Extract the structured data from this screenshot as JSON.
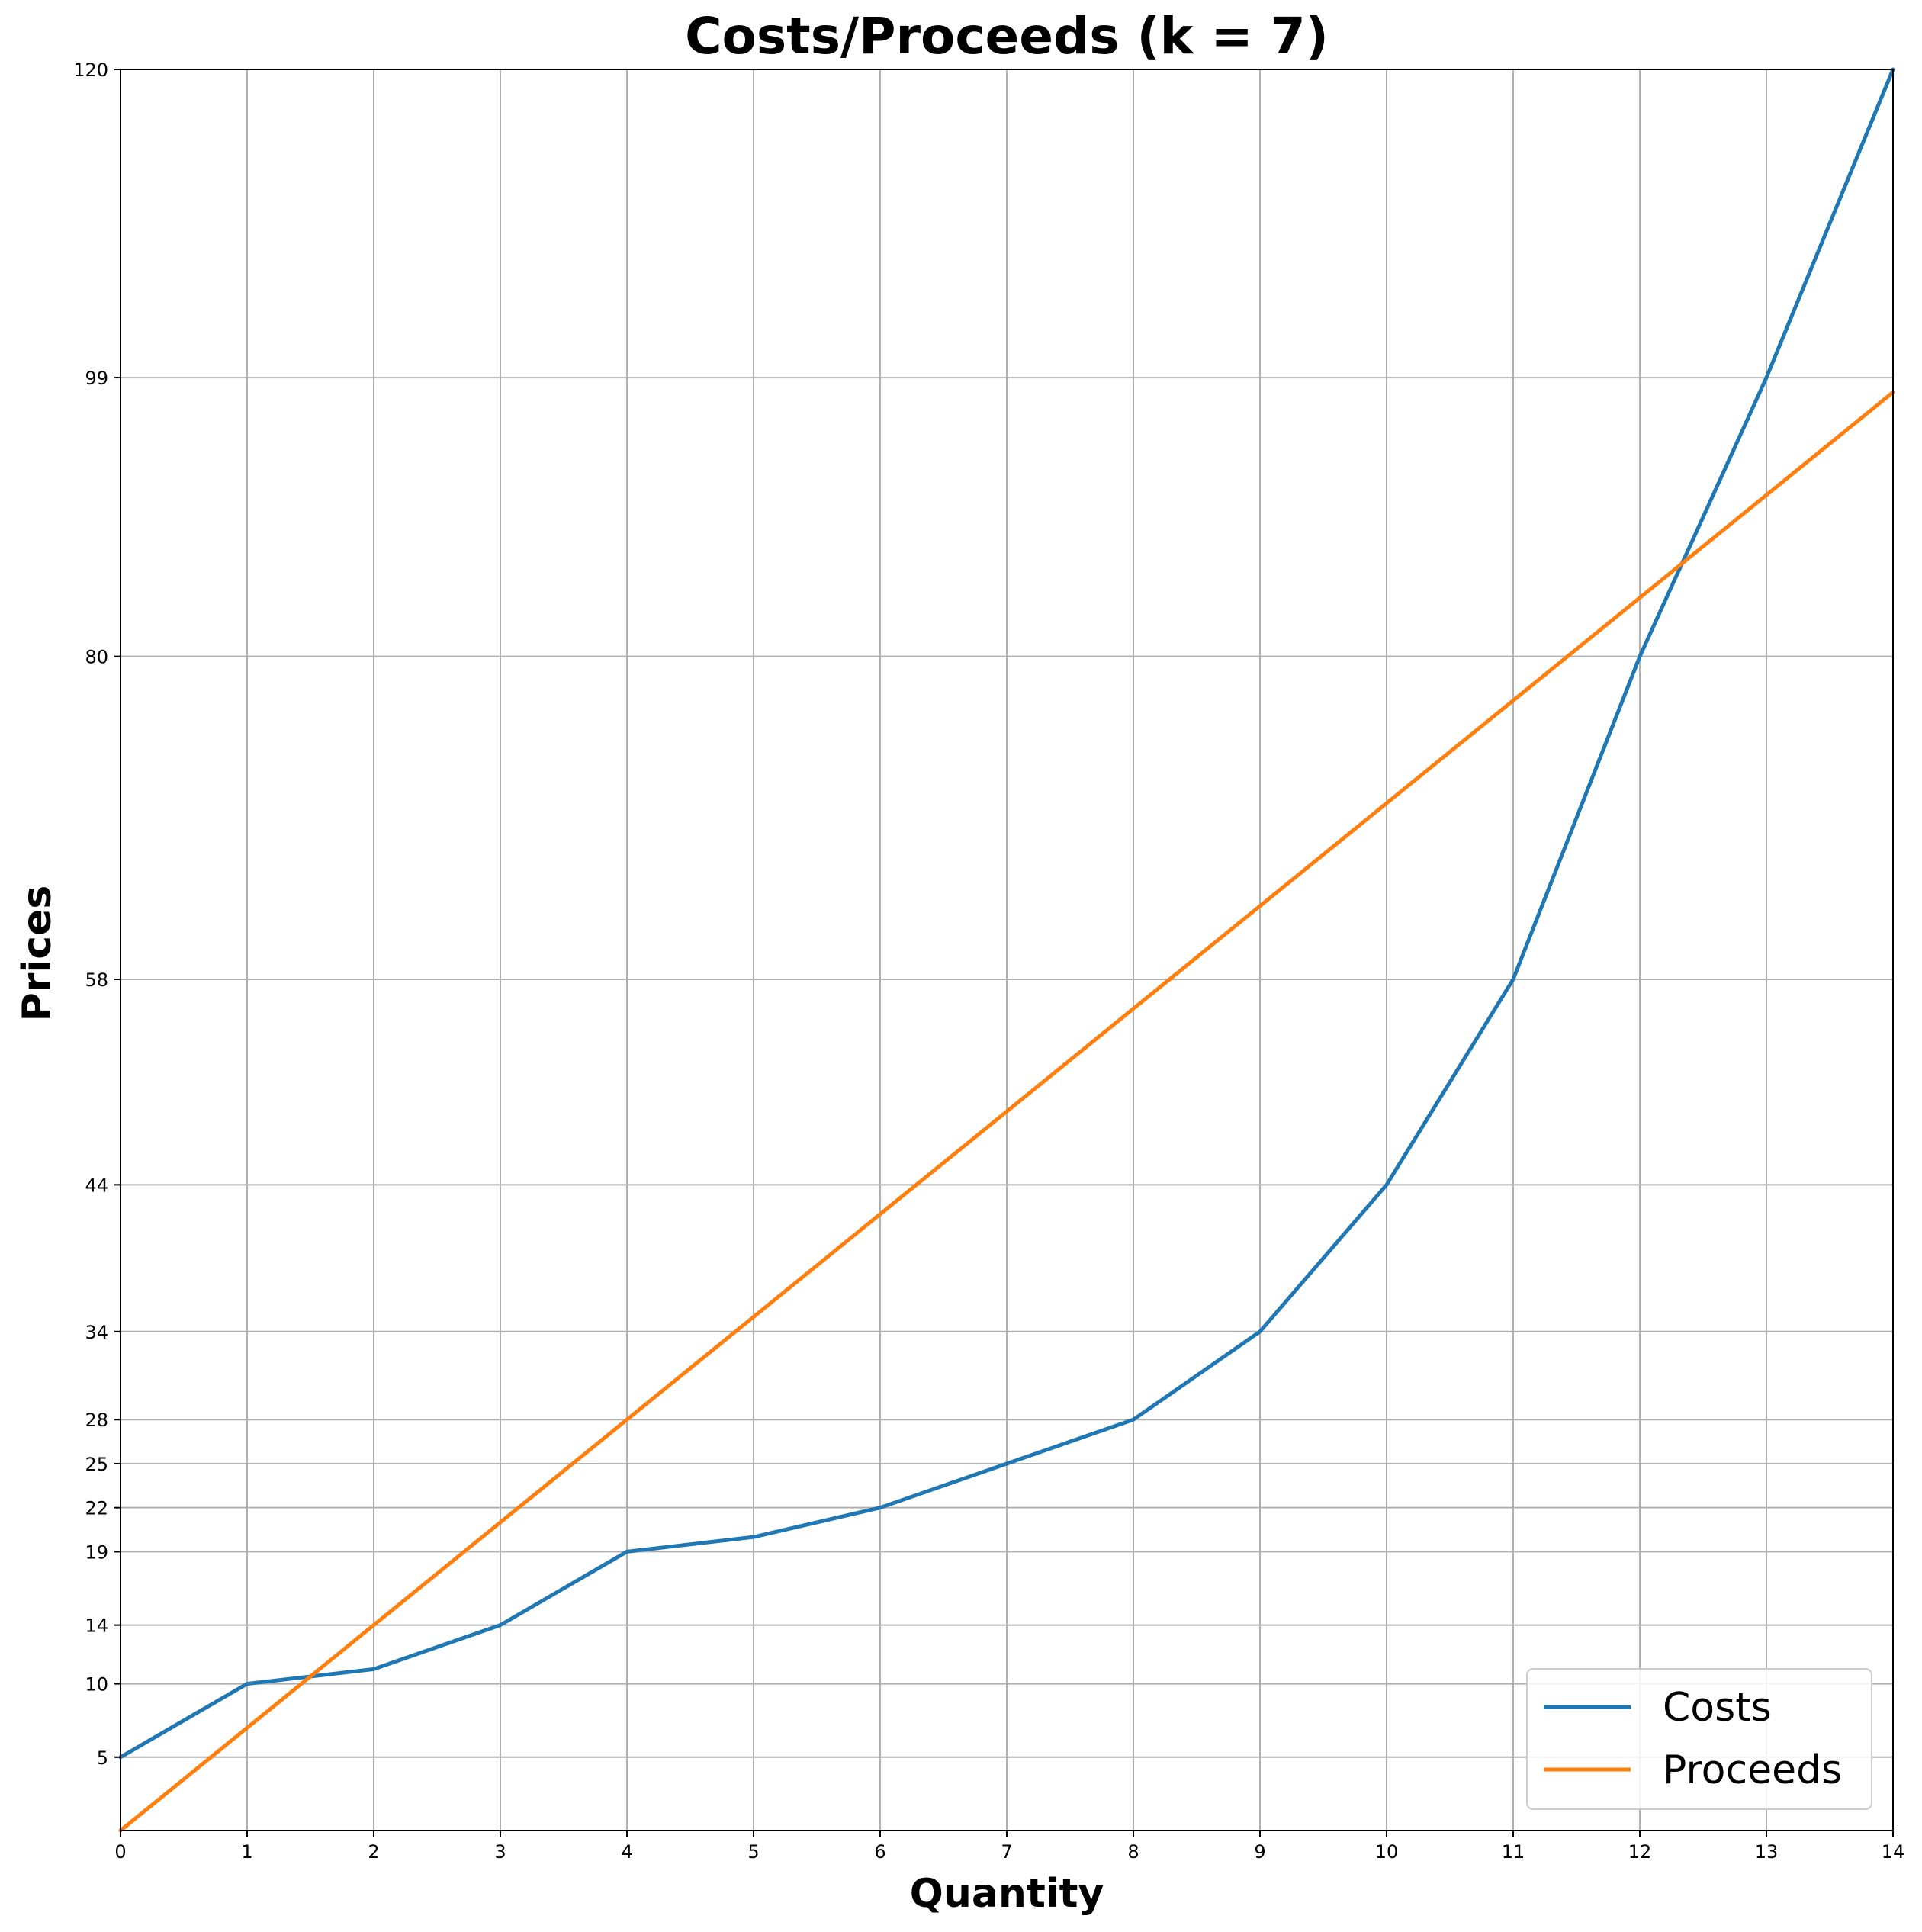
{
  "chart_data": {
    "type": "line",
    "title": "Costs/Proceeds (k = 7)",
    "xlabel": "Quantity",
    "ylabel": "Prices",
    "x": [
      0,
      1,
      2,
      3,
      4,
      5,
      6,
      7,
      8,
      9,
      10,
      11,
      12,
      13,
      14
    ],
    "xlim": [
      0,
      14
    ],
    "ylim": [
      0,
      120
    ],
    "x_ticks": [
      "0",
      "1",
      "2",
      "3",
      "4",
      "5",
      "6",
      "7",
      "8",
      "9",
      "10",
      "11",
      "12",
      "13",
      "14"
    ],
    "y_ticks": [
      "5",
      "10",
      "14",
      "19",
      "22",
      "25",
      "28",
      "34",
      "44",
      "58",
      "80",
      "99",
      "120"
    ],
    "grid": true,
    "legend_position": "lower-right",
    "series": [
      {
        "name": "Costs",
        "color": "#1f77b4",
        "values": [
          5,
          10,
          11,
          14,
          19,
          20,
          22,
          25,
          28,
          34,
          44,
          58,
          80,
          99,
          120
        ]
      },
      {
        "name": "Proceeds",
        "color": "#ff7f0e",
        "values": [
          0,
          7,
          14,
          21,
          28,
          35,
          42,
          49,
          56,
          63,
          70,
          77,
          84,
          91,
          98
        ]
      }
    ]
  }
}
